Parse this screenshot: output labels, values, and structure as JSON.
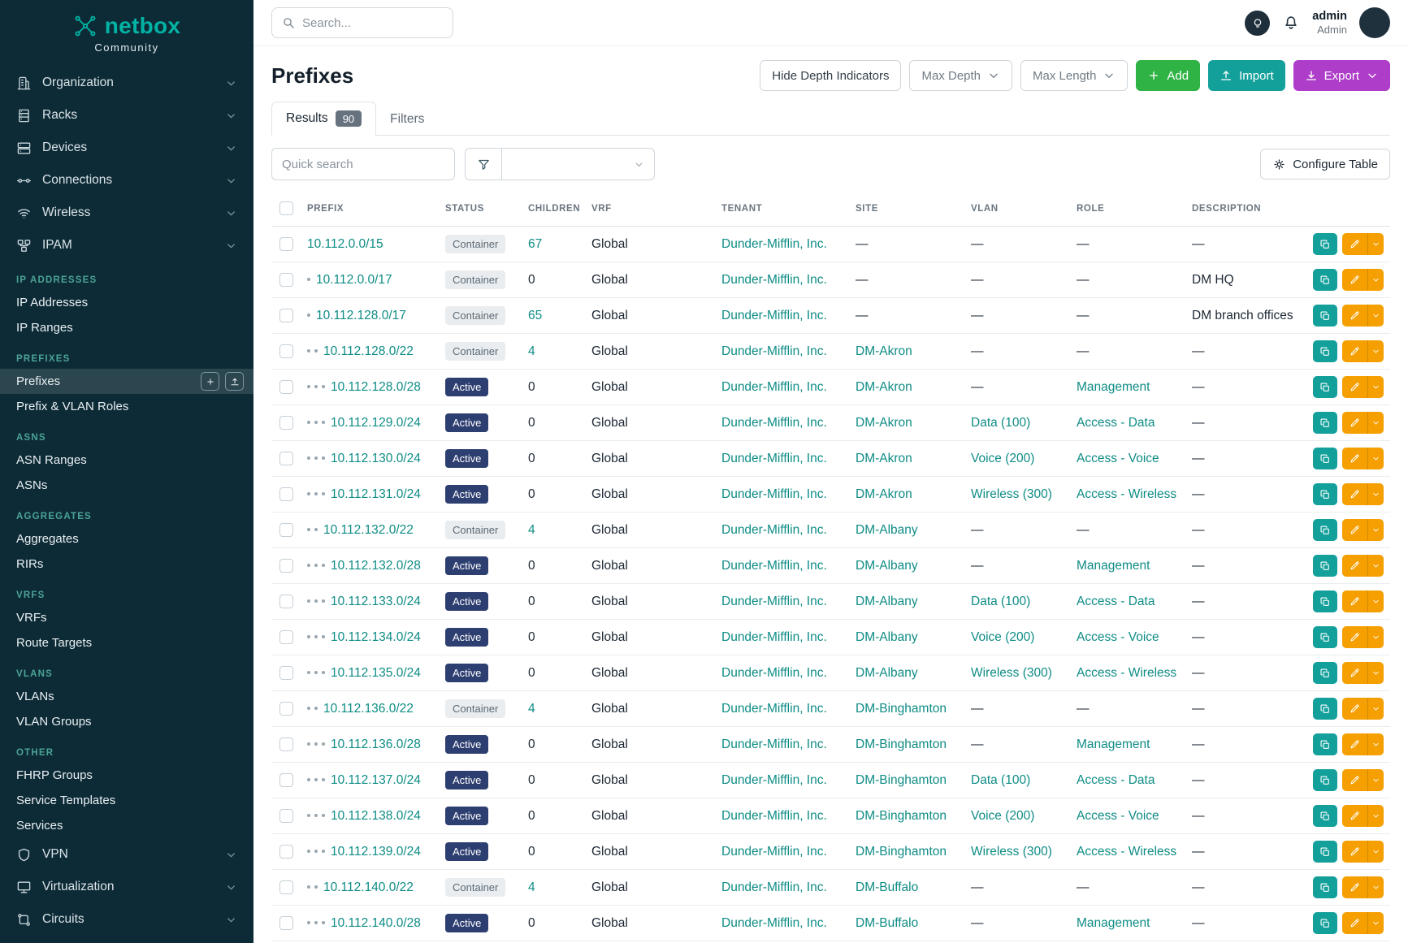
{
  "brand": {
    "name": "netbox",
    "subtitle": "Community"
  },
  "topbar": {
    "search_placeholder": "Search...",
    "user_name": "admin",
    "user_role": "Admin"
  },
  "sidebar": {
    "groups_top": [
      {
        "label": "Organization",
        "icon": "building-icon"
      },
      {
        "label": "Racks",
        "icon": "rack-icon"
      },
      {
        "label": "Devices",
        "icon": "devices-icon"
      },
      {
        "label": "Connections",
        "icon": "connections-icon"
      },
      {
        "label": "Wireless",
        "icon": "wifi-icon"
      },
      {
        "label": "IPAM",
        "icon": "ipam-icon"
      }
    ],
    "ipam_sections": [
      {
        "heading": "IP ADDRESSES",
        "items": [
          {
            "label": "IP Addresses"
          },
          {
            "label": "IP Ranges"
          }
        ]
      },
      {
        "heading": "PREFIXES",
        "items": [
          {
            "label": "Prefixes",
            "active": true
          },
          {
            "label": "Prefix & VLAN Roles"
          }
        ]
      },
      {
        "heading": "ASNS",
        "items": [
          {
            "label": "ASN Ranges"
          },
          {
            "label": "ASNs"
          }
        ]
      },
      {
        "heading": "AGGREGATES",
        "items": [
          {
            "label": "Aggregates"
          },
          {
            "label": "RIRs"
          }
        ]
      },
      {
        "heading": "VRFS",
        "items": [
          {
            "label": "VRFs"
          },
          {
            "label": "Route Targets"
          }
        ]
      },
      {
        "heading": "VLANS",
        "items": [
          {
            "label": "VLANs"
          },
          {
            "label": "VLAN Groups"
          }
        ]
      },
      {
        "heading": "OTHER",
        "items": [
          {
            "label": "FHRP Groups"
          },
          {
            "label": "Service Templates"
          },
          {
            "label": "Services"
          }
        ]
      }
    ],
    "groups_bottom": [
      {
        "label": "VPN",
        "icon": "vpn-icon"
      },
      {
        "label": "Virtualization",
        "icon": "virtualization-icon"
      },
      {
        "label": "Circuits",
        "icon": "circuits-icon"
      }
    ]
  },
  "page": {
    "title": "Prefixes",
    "toolbar": {
      "hide_depth_label": "Hide Depth Indicators",
      "max_depth_label": "Max Depth",
      "max_length_label": "Max Length",
      "add_label": "Add",
      "import_label": "Import",
      "export_label": "Export"
    },
    "tabs": [
      {
        "label": "Results",
        "badge": "90"
      },
      {
        "label": "Filters"
      }
    ],
    "quick_search_placeholder": "Quick search",
    "configure_table_label": "Configure Table"
  },
  "table": {
    "columns": [
      "PREFIX",
      "STATUS",
      "CHILDREN",
      "VRF",
      "TENANT",
      "SITE",
      "VLAN",
      "ROLE",
      "DESCRIPTION"
    ],
    "rows": [
      {
        "depth": 0,
        "prefix": "10.112.0.0/15",
        "status": "Container",
        "children": "67",
        "vrf": "Global",
        "tenant": "Dunder-Mifflin, Inc.",
        "site": "—",
        "vlan": "—",
        "role": "—",
        "description": "—"
      },
      {
        "depth": 1,
        "prefix": "10.112.0.0/17",
        "status": "Container",
        "children": "0",
        "vrf": "Global",
        "tenant": "Dunder-Mifflin, Inc.",
        "site": "—",
        "vlan": "—",
        "role": "—",
        "description": "DM HQ"
      },
      {
        "depth": 1,
        "prefix": "10.112.128.0/17",
        "status": "Container",
        "children": "65",
        "vrf": "Global",
        "tenant": "Dunder-Mifflin, Inc.",
        "site": "—",
        "vlan": "—",
        "role": "—",
        "description": "DM branch offices"
      },
      {
        "depth": 2,
        "prefix": "10.112.128.0/22",
        "status": "Container",
        "children": "4",
        "vrf": "Global",
        "tenant": "Dunder-Mifflin, Inc.",
        "site": "DM-Akron",
        "vlan": "—",
        "role": "—",
        "description": "—"
      },
      {
        "depth": 3,
        "prefix": "10.112.128.0/28",
        "status": "Active",
        "children": "0",
        "vrf": "Global",
        "tenant": "Dunder-Mifflin, Inc.",
        "site": "DM-Akron",
        "vlan": "—",
        "role": "Management",
        "description": "—"
      },
      {
        "depth": 3,
        "prefix": "10.112.129.0/24",
        "status": "Active",
        "children": "0",
        "vrf": "Global",
        "tenant": "Dunder-Mifflin, Inc.",
        "site": "DM-Akron",
        "vlan": "Data (100)",
        "role": "Access - Data",
        "description": "—"
      },
      {
        "depth": 3,
        "prefix": "10.112.130.0/24",
        "status": "Active",
        "children": "0",
        "vrf": "Global",
        "tenant": "Dunder-Mifflin, Inc.",
        "site": "DM-Akron",
        "vlan": "Voice (200)",
        "role": "Access - Voice",
        "description": "—"
      },
      {
        "depth": 3,
        "prefix": "10.112.131.0/24",
        "status": "Active",
        "children": "0",
        "vrf": "Global",
        "tenant": "Dunder-Mifflin, Inc.",
        "site": "DM-Akron",
        "vlan": "Wireless (300)",
        "role": "Access - Wireless",
        "description": "—"
      },
      {
        "depth": 2,
        "prefix": "10.112.132.0/22",
        "status": "Container",
        "children": "4",
        "vrf": "Global",
        "tenant": "Dunder-Mifflin, Inc.",
        "site": "DM-Albany",
        "vlan": "—",
        "role": "—",
        "description": "—"
      },
      {
        "depth": 3,
        "prefix": "10.112.132.0/28",
        "status": "Active",
        "children": "0",
        "vrf": "Global",
        "tenant": "Dunder-Mifflin, Inc.",
        "site": "DM-Albany",
        "vlan": "—",
        "role": "Management",
        "description": "—"
      },
      {
        "depth": 3,
        "prefix": "10.112.133.0/24",
        "status": "Active",
        "children": "0",
        "vrf": "Global",
        "tenant": "Dunder-Mifflin, Inc.",
        "site": "DM-Albany",
        "vlan": "Data (100)",
        "role": "Access - Data",
        "description": "—"
      },
      {
        "depth": 3,
        "prefix": "10.112.134.0/24",
        "status": "Active",
        "children": "0",
        "vrf": "Global",
        "tenant": "Dunder-Mifflin, Inc.",
        "site": "DM-Albany",
        "vlan": "Voice (200)",
        "role": "Access - Voice",
        "description": "—"
      },
      {
        "depth": 3,
        "prefix": "10.112.135.0/24",
        "status": "Active",
        "children": "0",
        "vrf": "Global",
        "tenant": "Dunder-Mifflin, Inc.",
        "site": "DM-Albany",
        "vlan": "Wireless (300)",
        "role": "Access - Wireless",
        "description": "—"
      },
      {
        "depth": 2,
        "prefix": "10.112.136.0/22",
        "status": "Container",
        "children": "4",
        "vrf": "Global",
        "tenant": "Dunder-Mifflin, Inc.",
        "site": "DM-Binghamton",
        "vlan": "—",
        "role": "—",
        "description": "—"
      },
      {
        "depth": 3,
        "prefix": "10.112.136.0/28",
        "status": "Active",
        "children": "0",
        "vrf": "Global",
        "tenant": "Dunder-Mifflin, Inc.",
        "site": "DM-Binghamton",
        "vlan": "—",
        "role": "Management",
        "description": "—"
      },
      {
        "depth": 3,
        "prefix": "10.112.137.0/24",
        "status": "Active",
        "children": "0",
        "vrf": "Global",
        "tenant": "Dunder-Mifflin, Inc.",
        "site": "DM-Binghamton",
        "vlan": "Data (100)",
        "role": "Access - Data",
        "description": "—"
      },
      {
        "depth": 3,
        "prefix": "10.112.138.0/24",
        "status": "Active",
        "children": "0",
        "vrf": "Global",
        "tenant": "Dunder-Mifflin, Inc.",
        "site": "DM-Binghamton",
        "vlan": "Voice (200)",
        "role": "Access - Voice",
        "description": "—"
      },
      {
        "depth": 3,
        "prefix": "10.112.139.0/24",
        "status": "Active",
        "children": "0",
        "vrf": "Global",
        "tenant": "Dunder-Mifflin, Inc.",
        "site": "DM-Binghamton",
        "vlan": "Wireless (300)",
        "role": "Access - Wireless",
        "description": "—"
      },
      {
        "depth": 2,
        "prefix": "10.112.140.0/22",
        "status": "Container",
        "children": "4",
        "vrf": "Global",
        "tenant": "Dunder-Mifflin, Inc.",
        "site": "DM-Buffalo",
        "vlan": "—",
        "role": "—",
        "description": "—"
      },
      {
        "depth": 3,
        "prefix": "10.112.140.0/28",
        "status": "Active",
        "children": "0",
        "vrf": "Global",
        "tenant": "Dunder-Mifflin, Inc.",
        "site": "DM-Buffalo",
        "vlan": "—",
        "role": "Management",
        "description": "—"
      }
    ]
  },
  "colors": {
    "sidebar_bg": "#0d2b36",
    "logo_teal": "#00b3a4",
    "heading_teal": "#4ba396",
    "link_teal": "#0e8c85",
    "status_active_bg": "#2d3e70",
    "status_container_bg": "#e9edf0",
    "status_container_text": "#5d6a75",
    "add_green": "#2fb344",
    "import_teal": "#13a09b",
    "export_purple": "#ae3ec9",
    "edit_orange": "#f59f00"
  }
}
